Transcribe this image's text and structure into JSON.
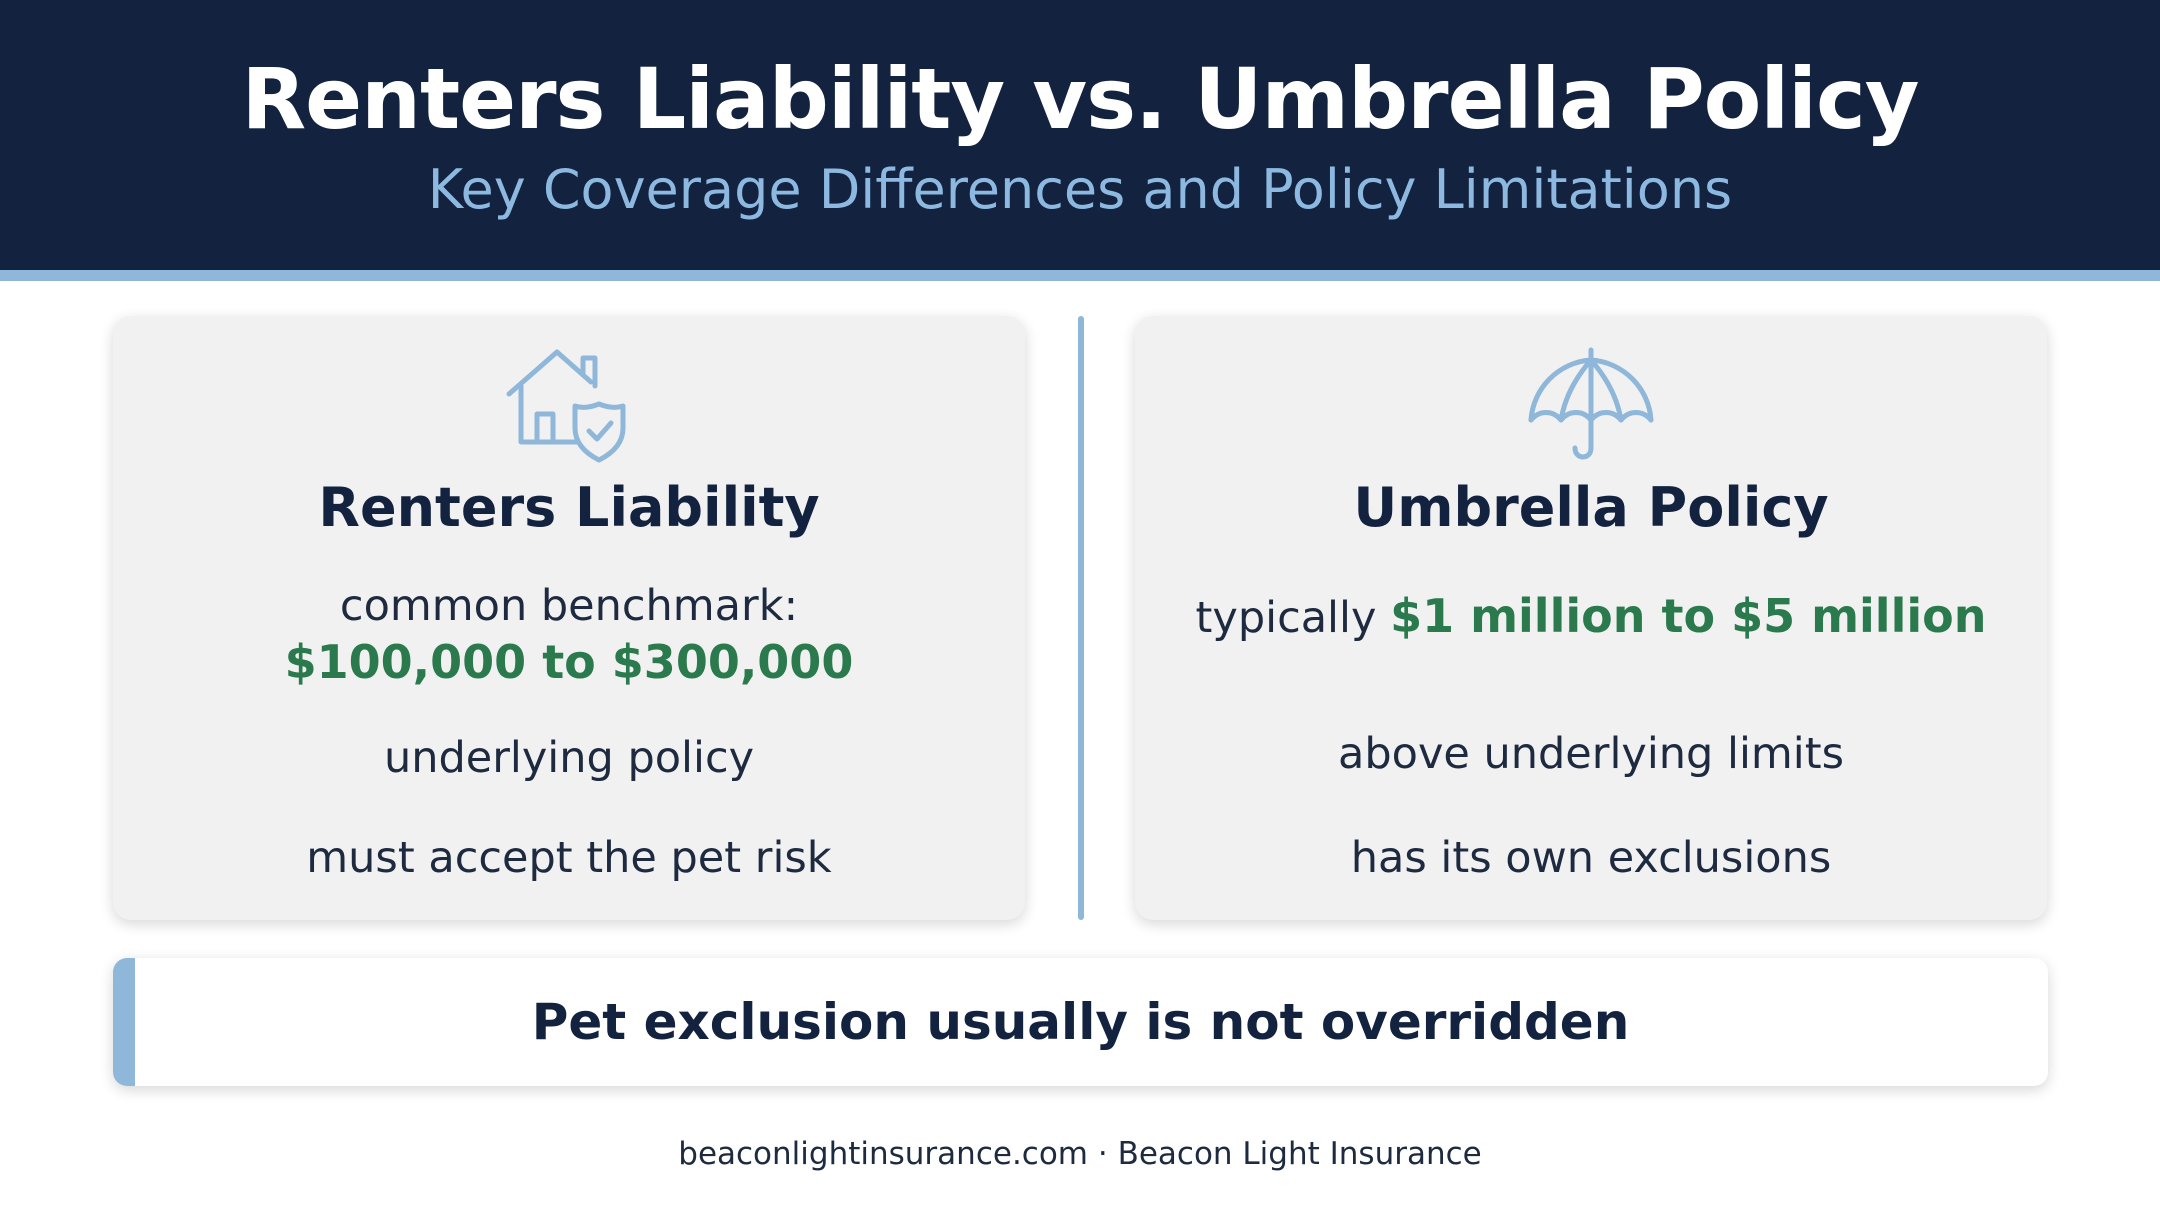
{
  "header": {
    "title": "Renters Liability vs. Umbrella Policy",
    "subtitle": "Key Coverage Differences and Policy Limitations"
  },
  "cards": [
    {
      "icon": "house-shield-icon",
      "title": "Renters Liability",
      "benchmark_label": "common benchmark:",
      "benchmark_value": "$100,000 to $300,000",
      "line_1": "underlying policy",
      "line_2": "must accept the pet risk"
    },
    {
      "icon": "umbrella-icon",
      "title": "Umbrella Policy",
      "range_prefix": "typically ",
      "range_value": "$1 million to $5 million",
      "line_1": "above underlying limits",
      "line_2": "has its own exclusions"
    }
  ],
  "banner": {
    "text": "Pet exclusion usually is not overridden"
  },
  "footer": {
    "text": "beaconlightinsurance.com · Beacon Light Insurance"
  },
  "colors": {
    "header_bg": "#12223f",
    "accent_blue": "#8eb7da",
    "subtitle_blue": "#8db9e0",
    "highlight_green": "#2a7a4d",
    "card_bg": "#f1f1f1"
  }
}
